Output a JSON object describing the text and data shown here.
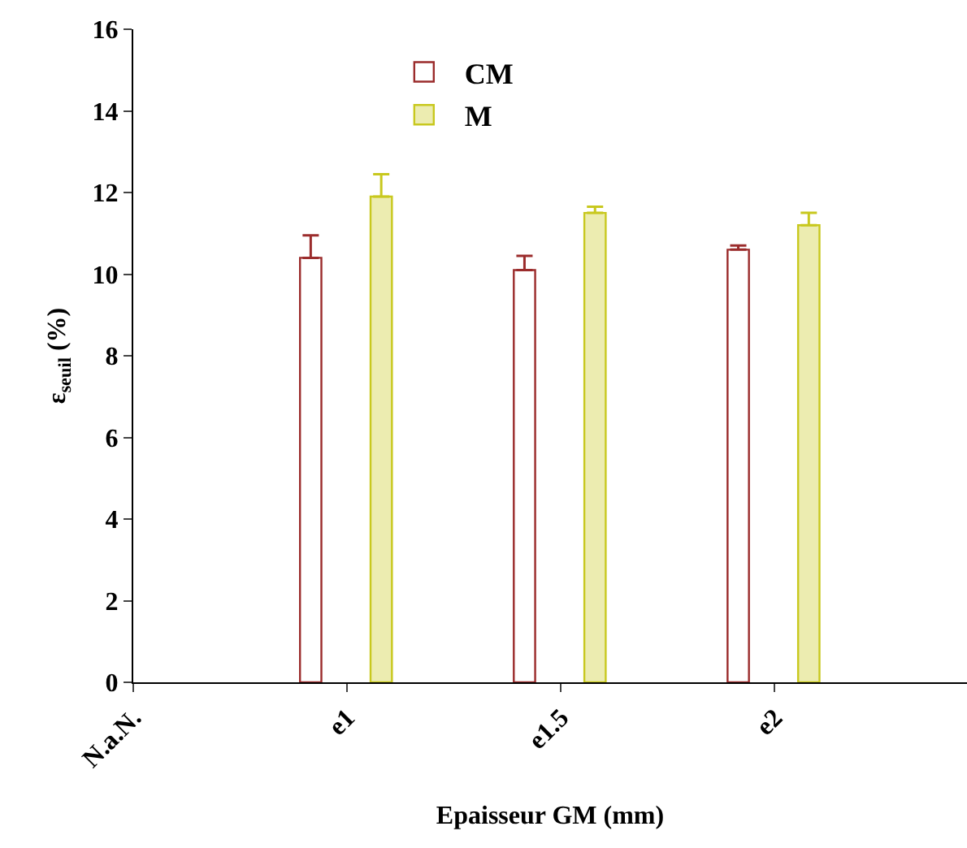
{
  "chart_data": {
    "type": "bar",
    "xlabel": "Epaisseur GM (mm)",
    "ylabel": "ε$_{seuil}$ (%)",
    "categories": [
      "N.a.N.",
      "e1",
      "e1.5",
      "e2"
    ],
    "series": [
      {
        "name": "CM",
        "color": "#9b2c2c",
        "values": [
          null,
          10.4,
          10.1,
          10.6
        ],
        "errors": [
          null,
          [
            10.4,
            10.95
          ],
          [
            10.1,
            10.45
          ],
          [
            10.6,
            10.7
          ]
        ]
      },
      {
        "name": "M",
        "color": "#c8c81e",
        "values": [
          null,
          11.9,
          11.5,
          11.2
        ],
        "errors": [
          null,
          [
            11.9,
            12.45
          ],
          [
            11.5,
            11.65
          ],
          [
            11.2,
            11.5
          ]
        ]
      }
    ],
    "ylim": [
      0,
      16
    ],
    "yticks": [
      0,
      2,
      4,
      6,
      8,
      10,
      12,
      14,
      16
    ],
    "grid": false,
    "legend": "top"
  }
}
